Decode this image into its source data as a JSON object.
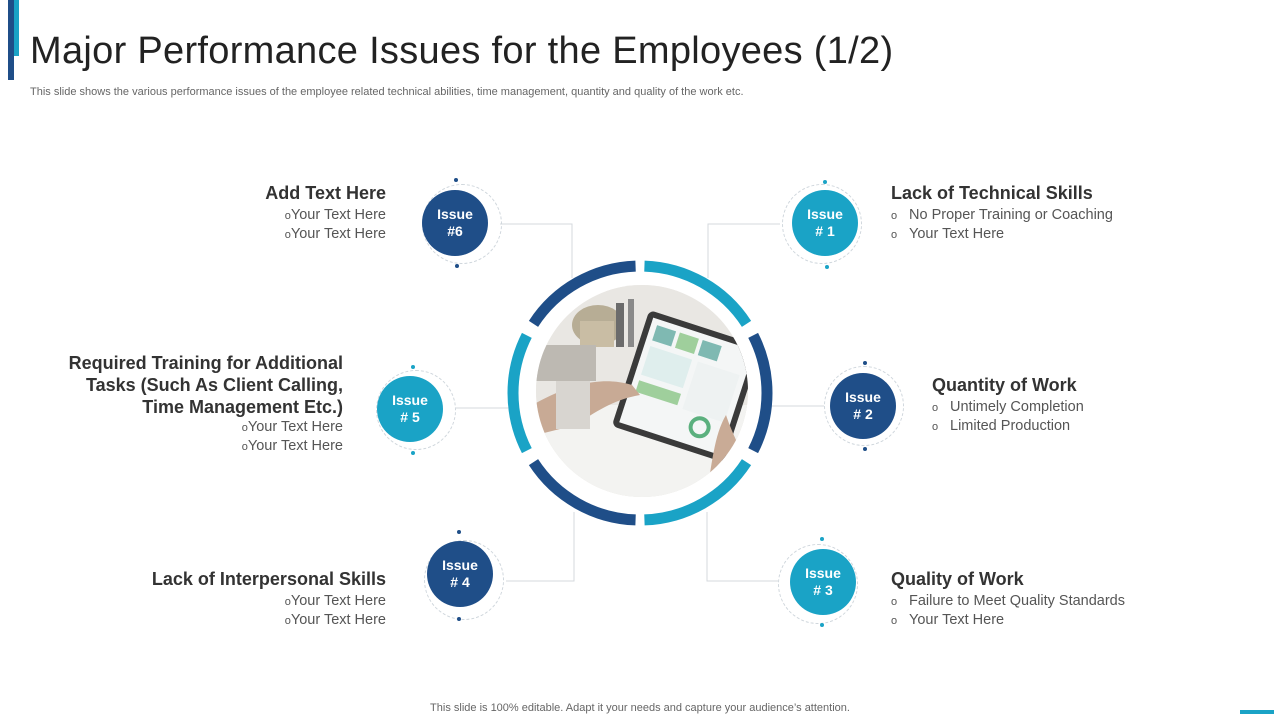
{
  "slide": {
    "title": "Major Performance Issues for the Employees (1/2)",
    "subtitle": "This slide shows the various performance issues of the employee related technical abilities, time management, quantity and quality of the work etc.",
    "footer": "This slide is 100% editable. Adapt it your needs and capture your audience’s attention."
  },
  "colors": {
    "dark_blue": "#1f4e88",
    "light_blue": "#1aa3c6"
  },
  "center_image": {
    "icon": "tablet-dashboard-photo"
  },
  "issues": [
    {
      "badge_line1": "Issue",
      "badge_line2": "# 1",
      "title": "Lack of Technical Skills",
      "bullets": [
        "No Proper Training or Coaching",
        "Your Text Here"
      ]
    },
    {
      "badge_line1": "Issue",
      "badge_line2": "# 2",
      "title": "Quantity of Work",
      "bullets": [
        "Untimely Completion",
        "Limited Production"
      ]
    },
    {
      "badge_line1": "Issue",
      "badge_line2": "# 3",
      "title": "Quality of Work",
      "bullets": [
        "Failure to Meet Quality Standards",
        "Your Text Here"
      ]
    },
    {
      "badge_line1": "Issue",
      "badge_line2": "# 4",
      "title": "Lack of Interpersonal Skills",
      "bullets": [
        "Your Text Here",
        "Your Text Here"
      ]
    },
    {
      "badge_line1": "Issue",
      "badge_line2": "# 5",
      "title_lines": [
        "Required Training for Additional",
        "Tasks (Such As Client Calling,",
        "Time Management Etc.)"
      ],
      "bullets": [
        "Your Text Here",
        "Your Text Here"
      ]
    },
    {
      "badge_line1": "Issue",
      "badge_line2": "#6",
      "title": "Add Text Here",
      "bullets": [
        "Your Text Here",
        "Your Text Here"
      ]
    }
  ],
  "bullet_symbol": "o"
}
